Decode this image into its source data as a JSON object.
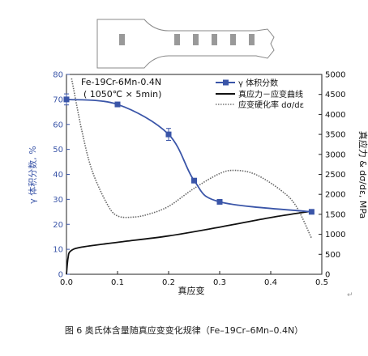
{
  "figure": {
    "caption": "图 6   奥氏体含量随真应变变化规律（Fe–19Cr–6Mn–0.4N）",
    "return_mark": "↵"
  },
  "chart_data": {
    "type": "line",
    "annotation_lines": [
      "Fe-19Cr-6Mn-0.4N",
      "( 1050℃ × 5min)"
    ],
    "xlabel": "真应变",
    "ylabel_left": "γ 体积分数, %",
    "ylabel_right": "真应力 & dσ/dε, MPa",
    "xlim": [
      0,
      0.5
    ],
    "ylim_left": [
      0,
      80
    ],
    "ylim_right": [
      0,
      5000
    ],
    "x_ticks": [
      "0.0",
      "0.1",
      "0.2",
      "0.3",
      "0.4",
      "0.5"
    ],
    "y_ticks_left": [
      "0",
      "10",
      "20",
      "30",
      "40",
      "50",
      "60",
      "70",
      "80"
    ],
    "y_ticks_right": [
      "0",
      "500",
      "1000",
      "1500",
      "2000",
      "2500",
      "3000",
      "3500",
      "4000",
      "4500",
      "5000"
    ],
    "legend_placement": "top-right",
    "grid": false,
    "series": [
      {
        "name": "γ 体积分数",
        "axis": "left",
        "color": "#3a55a8",
        "points": [
          {
            "x": 0.0,
            "y": 70.0
          },
          {
            "x": 0.1,
            "y": 68.0
          },
          {
            "x": 0.2,
            "y": 56.0
          },
          {
            "x": 0.25,
            "y": 37.5
          },
          {
            "x": 0.3,
            "y": 29.0
          },
          {
            "x": 0.48,
            "y": 25.0
          }
        ]
      },
      {
        "name": "真应力－应变曲线",
        "axis": "right",
        "color": "#111111",
        "points": [
          {
            "x": 0.0,
            "y": 0
          },
          {
            "x": 0.003,
            "y": 400
          },
          {
            "x": 0.008,
            "y": 580
          },
          {
            "x": 0.03,
            "y": 680
          },
          {
            "x": 0.1,
            "y": 800
          },
          {
            "x": 0.2,
            "y": 960
          },
          {
            "x": 0.3,
            "y": 1180
          },
          {
            "x": 0.4,
            "y": 1420
          },
          {
            "x": 0.48,
            "y": 1580
          }
        ]
      },
      {
        "name": "应变硬化率 dσ/dε",
        "axis": "right",
        "color": "#666666",
        "points": [
          {
            "x": 0.01,
            "y": 4900
          },
          {
            "x": 0.03,
            "y": 3600
          },
          {
            "x": 0.05,
            "y": 2600
          },
          {
            "x": 0.08,
            "y": 1750
          },
          {
            "x": 0.1,
            "y": 1460
          },
          {
            "x": 0.13,
            "y": 1430
          },
          {
            "x": 0.16,
            "y": 1500
          },
          {
            "x": 0.2,
            "y": 1700
          },
          {
            "x": 0.25,
            "y": 2150
          },
          {
            "x": 0.3,
            "y": 2520
          },
          {
            "x": 0.33,
            "y": 2600
          },
          {
            "x": 0.37,
            "y": 2500
          },
          {
            "x": 0.42,
            "y": 2100
          },
          {
            "x": 0.45,
            "y": 1700
          },
          {
            "x": 0.48,
            "y": 900
          }
        ]
      }
    ]
  }
}
